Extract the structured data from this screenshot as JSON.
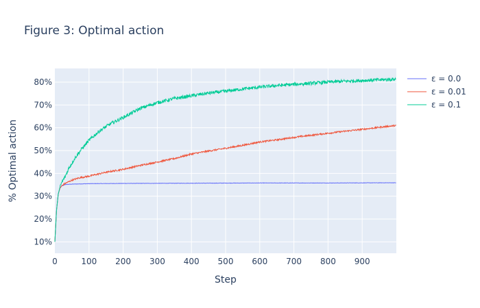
{
  "chart_data": {
    "type": "line",
    "title": "Figure 3: Optimal action",
    "xlabel": "Step",
    "ylabel": "% Optimal action",
    "xlim": [
      0,
      1000
    ],
    "ylim": [
      5,
      86
    ],
    "x_ticks": [
      0,
      100,
      200,
      300,
      400,
      500,
      600,
      700,
      800,
      900
    ],
    "y_ticks": [
      10,
      20,
      30,
      40,
      50,
      60,
      70,
      80
    ],
    "y_tick_suffix": "%",
    "grid": true,
    "legend_position": "top-right outside",
    "plot_background": "#e5ecf6",
    "series": [
      {
        "name": "ε = 0.0",
        "color": "#636efa",
        "points": [
          [
            0,
            10
          ],
          [
            5,
            24
          ],
          [
            10,
            31
          ],
          [
            15,
            33.5
          ],
          [
            20,
            34.5
          ],
          [
            30,
            35.1
          ],
          [
            50,
            35.3
          ],
          [
            100,
            35.5
          ],
          [
            200,
            35.6
          ],
          [
            400,
            35.7
          ],
          [
            600,
            35.8
          ],
          [
            800,
            35.8
          ],
          [
            999,
            35.9
          ]
        ]
      },
      {
        "name": "ε = 0.01",
        "color": "#ef553b",
        "points": [
          [
            0,
            10
          ],
          [
            5,
            24
          ],
          [
            10,
            31
          ],
          [
            15,
            33.5
          ],
          [
            20,
            34.5
          ],
          [
            30,
            35.6
          ],
          [
            50,
            37
          ],
          [
            70,
            38
          ],
          [
            100,
            38.8
          ],
          [
            150,
            40.5
          ],
          [
            200,
            41.8
          ],
          [
            250,
            43.5
          ],
          [
            300,
            45
          ],
          [
            350,
            46.5
          ],
          [
            400,
            48.5
          ],
          [
            450,
            49.8
          ],
          [
            500,
            51
          ],
          [
            550,
            52.3
          ],
          [
            600,
            53.8
          ],
          [
            650,
            54.7
          ],
          [
            700,
            55.8
          ],
          [
            750,
            56.7
          ],
          [
            800,
            57.6
          ],
          [
            850,
            58.5
          ],
          [
            900,
            59.3
          ],
          [
            950,
            60.2
          ],
          [
            999,
            61
          ]
        ]
      },
      {
        "name": "ε = 0.1",
        "color": "#00cc96",
        "points": [
          [
            0,
            10
          ],
          [
            5,
            24
          ],
          [
            10,
            31
          ],
          [
            15,
            34
          ],
          [
            20,
            36
          ],
          [
            30,
            38.5
          ],
          [
            40,
            42
          ],
          [
            60,
            47
          ],
          [
            80,
            51
          ],
          [
            100,
            54.5
          ],
          [
            130,
            58.5
          ],
          [
            160,
            61.5
          ],
          [
            200,
            64.5
          ],
          [
            250,
            68.5
          ],
          [
            300,
            71
          ],
          [
            350,
            72.8
          ],
          [
            400,
            74
          ],
          [
            450,
            75.2
          ],
          [
            500,
            76
          ],
          [
            550,
            77
          ],
          [
            600,
            77.8
          ],
          [
            650,
            78.5
          ],
          [
            700,
            79
          ],
          [
            750,
            79.5
          ],
          [
            800,
            80
          ],
          [
            850,
            80.4
          ],
          [
            900,
            80.7
          ],
          [
            950,
            81
          ],
          [
            999,
            81.3
          ]
        ]
      }
    ]
  }
}
